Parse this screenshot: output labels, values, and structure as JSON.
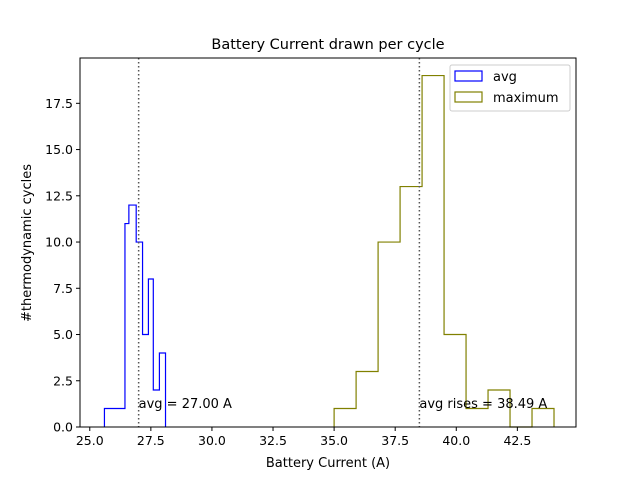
{
  "chart_data": {
    "type": "histogram",
    "title": "Battery Current drawn per cycle",
    "xlabel": "Battery Current (A)",
    "ylabel": "#thermodynamic cycles",
    "xlim": [
      24.6,
      44.9
    ],
    "ylim": [
      0,
      19.95
    ],
    "xticks": [
      25.0,
      27.5,
      30.0,
      32.5,
      35.0,
      37.5,
      40.0,
      42.5
    ],
    "xtick_labels": [
      "25.0",
      "27.5",
      "30.0",
      "32.5",
      "35.0",
      "37.5",
      "40.0",
      "42.5"
    ],
    "yticks": [
      0.0,
      2.5,
      5.0,
      7.5,
      10.0,
      12.5,
      15.0,
      17.5
    ],
    "ytick_labels": [
      "0.0",
      "2.5",
      "5.0",
      "7.5",
      "10.0",
      "12.5",
      "15.0",
      "17.5"
    ],
    "grid": false,
    "legend_position": "top-right",
    "series": [
      {
        "name": "avg",
        "color": "#0000ff",
        "bin_edges": [
          25.6,
          26.44,
          26.6,
          26.9,
          27.16,
          27.4,
          27.6,
          27.85,
          28.1
        ],
        "counts": [
          1,
          11,
          12,
          10,
          5,
          8,
          2,
          4
        ]
      },
      {
        "name": "maximum",
        "color": "#808000",
        "bin_edges": [
          35.0,
          35.9,
          36.8,
          37.7,
          38.6,
          39.5,
          40.4,
          41.3,
          42.2,
          43.1,
          44.0
        ],
        "counts": [
          1,
          3,
          10,
          13,
          19,
          5,
          1,
          2,
          0,
          1
        ]
      }
    ],
    "reference_lines": [
      {
        "x": 27.0,
        "label": "avg = 27.00 A",
        "color": "#555555"
      },
      {
        "x": 38.49,
        "label": "avg rises = 38.49 A",
        "color": "#555555"
      }
    ]
  }
}
